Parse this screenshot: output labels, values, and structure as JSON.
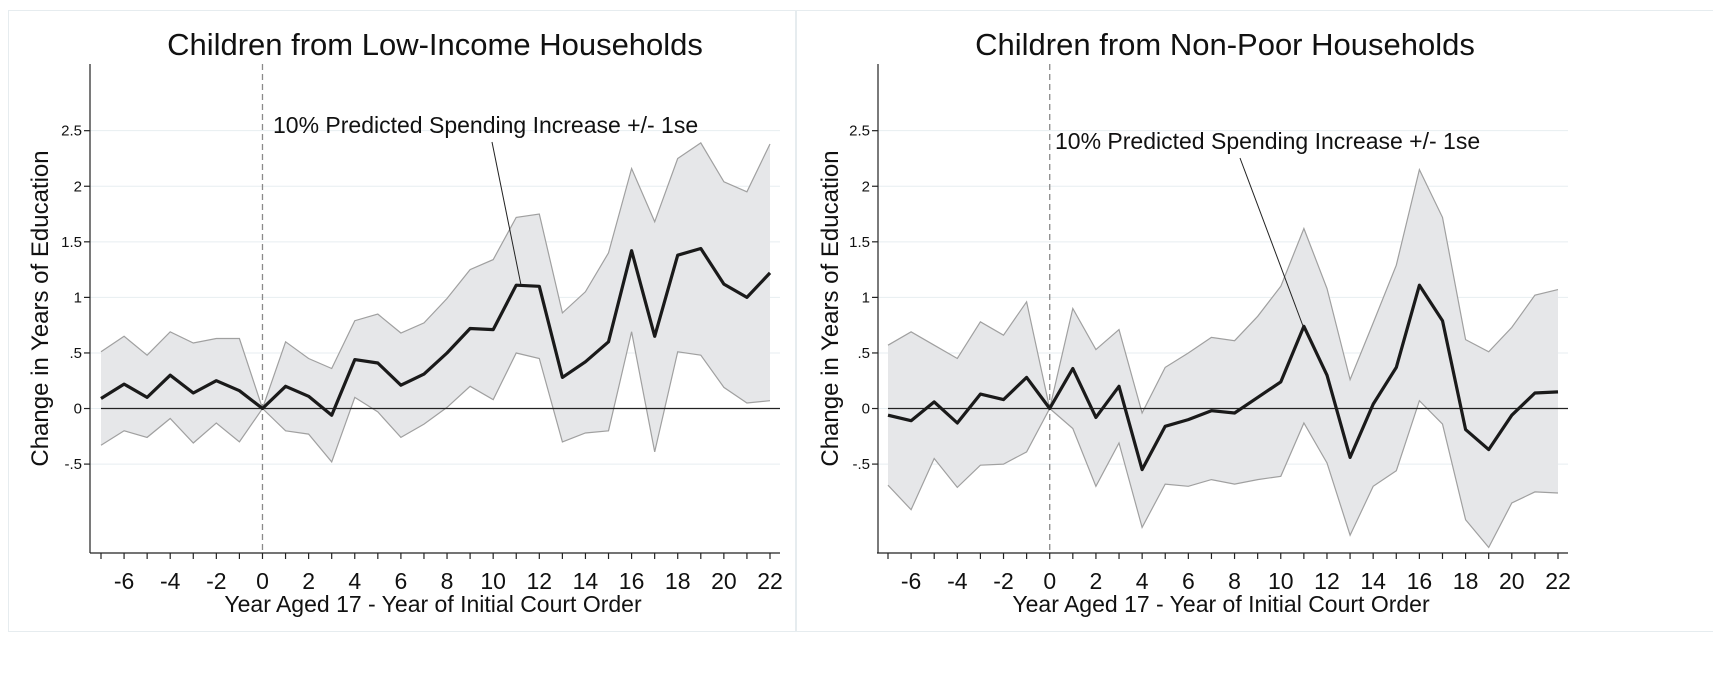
{
  "top_strip_text": "",
  "chart_data": [
    {
      "type": "line",
      "title": "Children from Low-Income Households",
      "xlabel": "Year Aged 17 - Year of Initial Court Order",
      "ylabel": "Change in Years of Education",
      "annotation": "10% Predicted Spending Increase +/- 1se",
      "xlim": [
        -7,
        22
      ],
      "ylim": [
        -1.3,
        3.1
      ],
      "x_ticks": [
        -6,
        -4,
        -2,
        0,
        2,
        4,
        6,
        8,
        10,
        12,
        14,
        16,
        18,
        20,
        22
      ],
      "y_ticks": [
        {
          "value": 2.5,
          "label": "2.5"
        },
        {
          "value": 2,
          "label": "2"
        },
        {
          "value": 1.5,
          "label": "1.5"
        },
        {
          "value": 1,
          "label": "1"
        },
        {
          "value": 0.5,
          "label": ".5"
        },
        {
          "value": 0,
          "label": "0"
        },
        {
          "value": -0.5,
          "label": "-.5"
        }
      ],
      "grid": true,
      "reference_line_x": 0,
      "reference_line_y": 0,
      "x": [
        -7,
        -6,
        -5,
        -4,
        -3,
        -2,
        -1,
        0,
        1,
        2,
        3,
        4,
        5,
        6,
        7,
        8,
        9,
        10,
        11,
        12,
        13,
        14,
        15,
        16,
        17,
        18,
        19,
        20,
        21,
        22
      ],
      "estimate": [
        0.09,
        0.22,
        0.1,
        0.3,
        0.14,
        0.25,
        0.16,
        0.0,
        0.2,
        0.11,
        -0.06,
        0.44,
        0.41,
        0.21,
        0.31,
        0.5,
        0.72,
        0.71,
        1.11,
        1.1,
        0.28,
        0.42,
        0.6,
        1.42,
        0.65,
        1.38,
        1.44,
        1.12,
        1.0,
        1.22
      ],
      "upper": [
        0.51,
        0.65,
        0.48,
        0.69,
        0.59,
        0.63,
        0.63,
        0.0,
        0.6,
        0.45,
        0.36,
        0.79,
        0.85,
        0.68,
        0.77,
        0.99,
        1.25,
        1.34,
        1.72,
        1.75,
        0.86,
        1.05,
        1.4,
        2.16,
        1.68,
        2.25,
        2.39,
        2.04,
        1.95,
        2.38
      ],
      "lower": [
        -0.33,
        -0.2,
        -0.26,
        -0.09,
        -0.31,
        -0.13,
        -0.3,
        0.0,
        -0.2,
        -0.23,
        -0.48,
        0.1,
        -0.03,
        -0.26,
        -0.14,
        0.01,
        0.2,
        0.08,
        0.5,
        0.45,
        -0.3,
        -0.22,
        -0.2,
        0.69,
        -0.39,
        0.51,
        0.48,
        0.19,
        0.05,
        0.07
      ],
      "colors": {
        "estimate": "#1a1a1a",
        "band_fill": "#e6e7e9",
        "band_edge": "#a0a0a0",
        "zero_line": "#222222",
        "vline": "#8a8a8a",
        "grid": "#e7eef1"
      }
    },
    {
      "type": "line",
      "title": "Children from Non-Poor Households",
      "xlabel": "Year Aged 17 - Year of Initial Court Order",
      "ylabel": "Change in Years of Education",
      "annotation": "10% Predicted Spending Increase +/- 1se",
      "xlim": [
        -7,
        22
      ],
      "ylim": [
        -1.3,
        3.1
      ],
      "x_ticks": [
        -6,
        -4,
        -2,
        0,
        2,
        4,
        6,
        8,
        10,
        12,
        14,
        16,
        18,
        20,
        22
      ],
      "y_ticks": [
        {
          "value": 2.5,
          "label": "2.5"
        },
        {
          "value": 2,
          "label": "2"
        },
        {
          "value": 1.5,
          "label": "1.5"
        },
        {
          "value": 1,
          "label": "1"
        },
        {
          "value": 0.5,
          "label": ".5"
        },
        {
          "value": 0,
          "label": "0"
        },
        {
          "value": -0.5,
          "label": "-.5"
        }
      ],
      "grid": true,
      "reference_line_x": 0,
      "reference_line_y": 0,
      "x": [
        -7,
        -6,
        -5,
        -4,
        -3,
        -2,
        -1,
        0,
        1,
        2,
        3,
        4,
        5,
        6,
        7,
        8,
        9,
        10,
        11,
        12,
        13,
        14,
        15,
        16,
        17,
        18,
        19,
        20,
        21,
        22
      ],
      "estimate": [
        -0.06,
        -0.11,
        0.06,
        -0.13,
        0.13,
        0.08,
        0.28,
        0.0,
        0.36,
        -0.08,
        0.2,
        -0.55,
        -0.16,
        -0.1,
        -0.02,
        -0.04,
        0.1,
        0.24,
        0.74,
        0.3,
        -0.44,
        0.04,
        0.37,
        1.11,
        0.79,
        -0.19,
        -0.37,
        -0.06,
        0.14,
        0.15
      ],
      "upper": [
        0.57,
        0.69,
        0.57,
        0.45,
        0.78,
        0.66,
        0.96,
        0.0,
        0.9,
        0.53,
        0.71,
        -0.04,
        0.37,
        0.5,
        0.64,
        0.61,
        0.83,
        1.1,
        1.62,
        1.08,
        0.26,
        0.77,
        1.29,
        2.15,
        1.72,
        0.62,
        0.51,
        0.73,
        1.02,
        1.07
      ],
      "lower": [
        -0.69,
        -0.91,
        -0.45,
        -0.71,
        -0.51,
        -0.5,
        -0.39,
        0.0,
        -0.18,
        -0.7,
        -0.31,
        -1.07,
        -0.68,
        -0.7,
        -0.64,
        -0.68,
        -0.64,
        -0.61,
        -0.13,
        -0.49,
        -1.14,
        -0.7,
        -0.56,
        0.07,
        -0.14,
        -1.0,
        -1.25,
        -0.85,
        -0.75,
        -0.76
      ],
      "colors": {
        "estimate": "#1a1a1a",
        "band_fill": "#e6e7e9",
        "band_edge": "#a0a0a0",
        "zero_line": "#222222",
        "vline": "#8a8a8a",
        "grid": "#e7eef1"
      }
    }
  ]
}
